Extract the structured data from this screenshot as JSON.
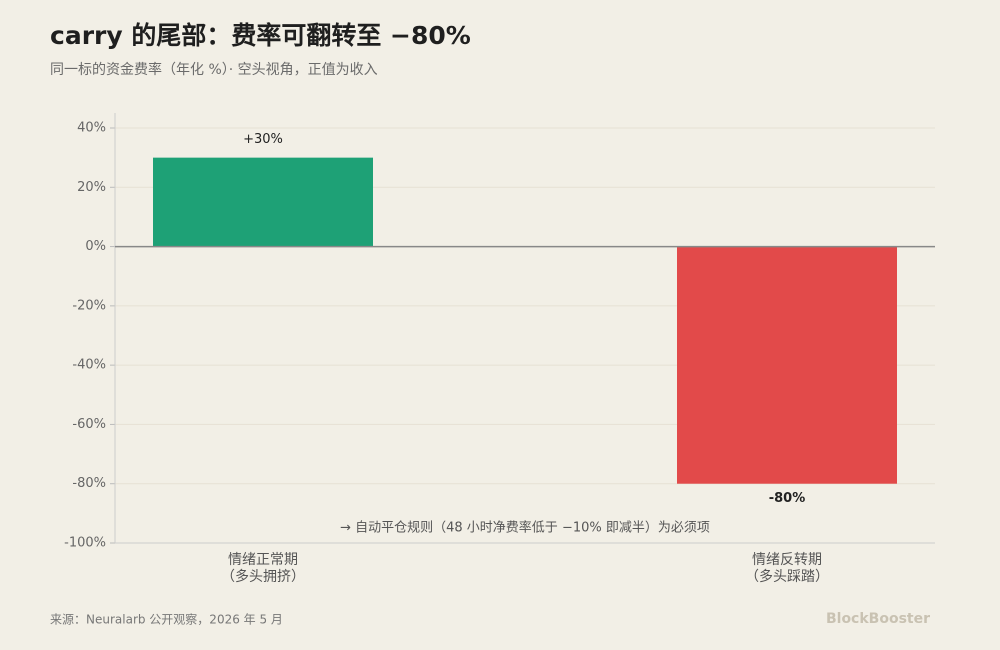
{
  "chart_data": {
    "type": "bar",
    "title": "carry 的尾部：费率可翻转至 −80%",
    "subtitle": "同一标的资金费率（年化 %）· 空头视角，正值为收入",
    "categories": [
      [
        "情绪正常期",
        "（多头拥挤）"
      ],
      [
        "情绪反转期",
        "（多头踩踏）"
      ]
    ],
    "values": [
      30,
      -80
    ],
    "value_labels": [
      "+30%",
      "-80%"
    ],
    "colors": [
      "#1ea176",
      "#e24a4a"
    ],
    "ylim": [
      -100,
      40
    ],
    "yticks": [
      {
        "value": 40,
        "label": "40%"
      },
      {
        "value": 20,
        "label": "20%"
      },
      {
        "value": 0,
        "label": "0%"
      },
      {
        "value": -20,
        "label": "-20%"
      },
      {
        "value": -40,
        "label": "-40%"
      },
      {
        "value": -60,
        "label": "-60%"
      },
      {
        "value": -80,
        "label": "-80%"
      },
      {
        "value": -100,
        "label": "-100%"
      }
    ],
    "grid": true,
    "annotation": "→ 自动平仓规则（48 小时净费率低于 −10% 即减半）为必须项",
    "source": "来源：Neuralarb 公开观察，2026 年 5 月",
    "brand": "BlockBooster"
  }
}
